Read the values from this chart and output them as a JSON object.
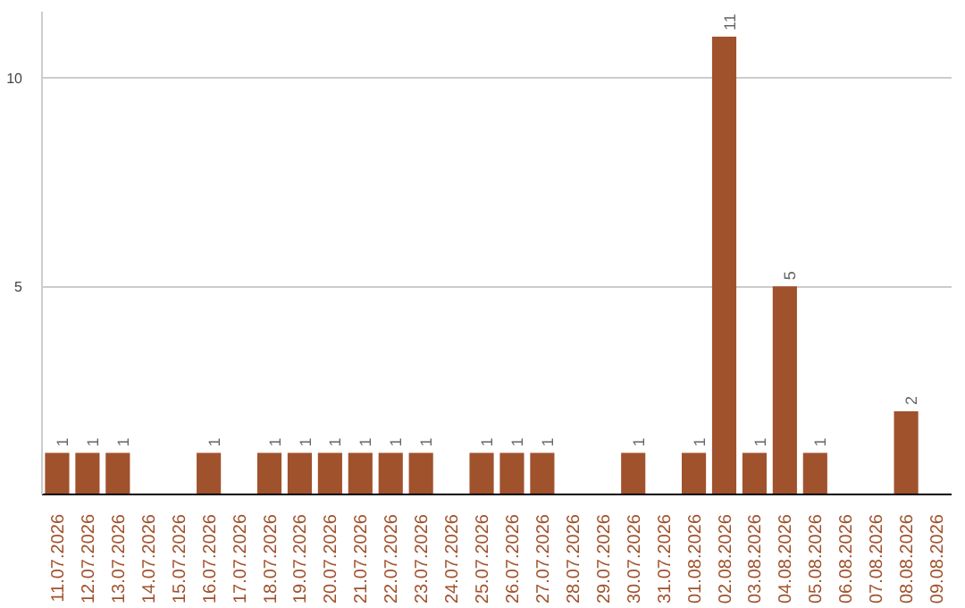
{
  "chart_data": {
    "type": "bar",
    "categories": [
      "11.07.2026",
      "12.07.2026",
      "13.07.2026",
      "14.07.2026",
      "15.07.2026",
      "16.07.2026",
      "17.07.2026",
      "18.07.2026",
      "19.07.2026",
      "20.07.2026",
      "21.07.2026",
      "22.07.2026",
      "23.07.2026",
      "24.07.2026",
      "25.07.2026",
      "26.07.2026",
      "27.07.2026",
      "28.07.2026",
      "29.07.2026",
      "30.07.2026",
      "31.07.2026",
      "01.08.2026",
      "02.08.2026",
      "03.08.2026",
      "04.08.2026",
      "05.08.2026",
      "06.08.2026",
      "07.08.2026",
      "08.08.2026",
      "09.08.2026"
    ],
    "values": [
      1,
      1,
      1,
      null,
      null,
      1,
      null,
      1,
      1,
      1,
      1,
      1,
      1,
      null,
      1,
      1,
      1,
      null,
      null,
      1,
      null,
      1,
      11,
      1,
      5,
      1,
      null,
      null,
      2,
      null
    ],
    "color": "#a0522d",
    "ylim": [
      0,
      11.6
    ],
    "yticks": [
      5,
      10
    ],
    "grid": "y",
    "data_labels": true
  }
}
